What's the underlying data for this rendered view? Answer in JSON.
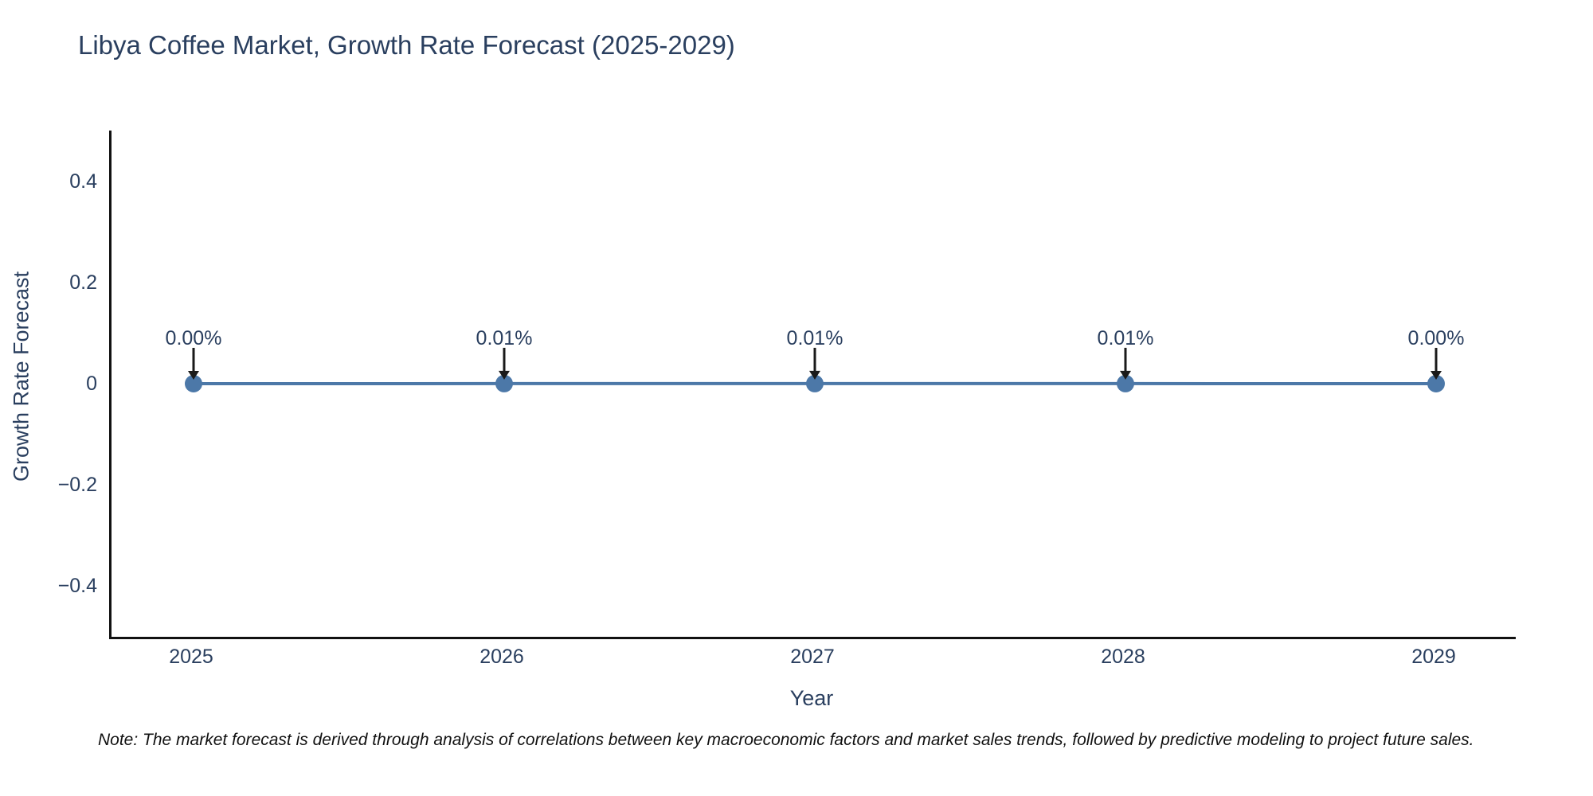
{
  "page": {
    "background_color": "#ffffff"
  },
  "chart_data": {
    "type": "line",
    "title": "Libya Coffee Market, Growth Rate Forecast (2025-2029)",
    "xlabel": "Year",
    "ylabel": "Growth Rate Forecast",
    "categories": [
      "2025",
      "2026",
      "2027",
      "2028",
      "2029"
    ],
    "series": [
      {
        "name": "Growth Rate Forecast",
        "values_percent": [
          0.0,
          0.01,
          0.01,
          0.01,
          0.0
        ],
        "point_labels": [
          "0.00%",
          "0.01%",
          "0.01%",
          "0.01%",
          "0.00%"
        ]
      }
    ],
    "ylim": [
      -0.5,
      0.5
    ],
    "ytick_values": [
      0.4,
      0.2,
      0,
      -0.2,
      -0.4
    ],
    "ytick_labels": [
      "0.4",
      "0.2",
      "0",
      "−0.2",
      "−0.4"
    ],
    "grid": false,
    "legend": false,
    "annotations_have_arrows": true,
    "line_color": "#4C78A8",
    "marker_color": "#4C78A8",
    "axis_line_color": "#111111",
    "text_color": "#2a3f5f",
    "arrow_color": "#1a1a1a"
  },
  "note": {
    "text": "Note: The market forecast is derived through analysis of correlations between key macroeconomic factors and market sales trends, followed by predictive modeling to project future sales."
  }
}
